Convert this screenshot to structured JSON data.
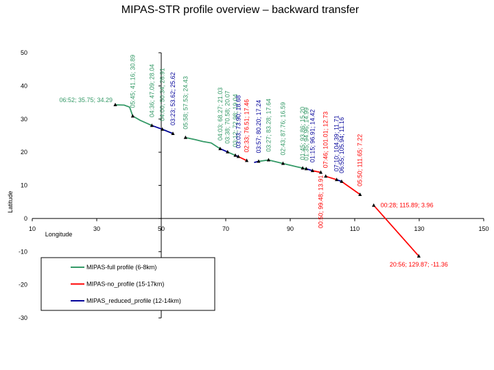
{
  "chart_data": {
    "type": "line",
    "title": "MIPAS-STR profile overview – backward transfer",
    "xlabel": "Longitude",
    "ylabel": "Latitude",
    "xlim": [
      10,
      150
    ],
    "ylim": [
      -30,
      50
    ],
    "xticks": [
      10,
      30,
      50,
      70,
      90,
      110,
      130,
      150
    ],
    "yticks": [
      50,
      40,
      30,
      20,
      10,
      0,
      -10,
      -20,
      -30
    ],
    "xtick_labels": [
      "10",
      "30",
      "50",
      "70",
      "90",
      "110",
      "130",
      "150"
    ],
    "ytick_labels": [
      "50",
      "40",
      "30",
      "20",
      "10",
      "0",
      "-10",
      "-20",
      "-30"
    ],
    "grid": false,
    "legend_position": "lower-left",
    "colors": {
      "full": "#339966",
      "no": "#ff0000",
      "reduced": "#000099",
      "marker": "#000000"
    },
    "series": [
      {
        "name": "MIPAS-full profile (6-8km)",
        "color": "#339966",
        "segments": [
          [
            [
              35.75,
              34.29
            ],
            [
              38.5,
              34.2
            ],
            [
              40.2,
              33.6
            ],
            [
              41.16,
              30.89
            ]
          ],
          [
            [
              41.16,
              30.89
            ],
            [
              43.5,
              29.6
            ],
            [
              47.09,
              28.04
            ]
          ],
          [
            [
              50.34,
              26.91
            ],
            [
              53.62,
              25.62
            ]
          ],
          [
            [
              57.53,
              24.43
            ],
            [
              60.5,
              23.8
            ],
            [
              63,
              23.2
            ],
            [
              65.5,
              22.8
            ],
            [
              68.27,
              21.03
            ]
          ],
          [
            [
              70.58,
              20.07
            ],
            [
              72.98,
              19.04
            ]
          ],
          [
            [
              80.2,
              17.24
            ],
            [
              83.28,
              17.64
            ],
            [
              87.76,
              16.59
            ]
          ],
          [
            [
              87.76,
              16.59
            ],
            [
              92,
              15.6
            ],
            [
              93.86,
              15.2
            ],
            [
              94.96,
              14.99
            ]
          ]
        ]
      },
      {
        "name": "MIPAS-no_profile (15-17km)",
        "color": "#ff0000",
        "segments": [
          [
            [
              73.9,
              18.68
            ],
            [
              76.51,
              17.46
            ]
          ],
          [
            [
              96.91,
              14.42
            ],
            [
              99.48,
              13.91
            ]
          ],
          [
            [
              101.01,
              12.73
            ],
            [
              104.39,
              11.71
            ]
          ],
          [
            [
              105.94,
              11.16
            ],
            [
              111.65,
              7.22
            ]
          ],
          [
            [
              115.89,
              3.96
            ],
            [
              129.87,
              -11.36
            ]
          ]
        ]
      },
      {
        "name": "MIPAS_reduced_profile (12-14km)",
        "color": "#000099",
        "segments": [
          [
            [
              47.09,
              28.04
            ],
            [
              50.34,
              26.91
            ]
          ],
          [
            [
              50.34,
              26.91
            ],
            [
              53.62,
              25.62
            ]
          ],
          [
            [
              68.27,
              21.03
            ],
            [
              70.58,
              20.07
            ]
          ],
          [
            [
              72.98,
              19.04
            ],
            [
              73.9,
              18.68
            ]
          ],
          [
            [
              80.2,
              17.24
            ],
            [
              78.8,
              16.9
            ]
          ],
          [
            [
              94.96,
              14.99
            ],
            [
              96.91,
              14.42
            ]
          ],
          [
            [
              104.39,
              11.71
            ],
            [
              105.94,
              11.16
            ]
          ]
        ]
      }
    ],
    "markers": [
      [
        35.75,
        34.29
      ],
      [
        41.16,
        30.89
      ],
      [
        47.09,
        28.04
      ],
      [
        50.34,
        26.91
      ],
      [
        53.62,
        25.62
      ],
      [
        57.53,
        24.43
      ],
      [
        68.27,
        21.03
      ],
      [
        70.58,
        20.07
      ],
      [
        72.98,
        19.04
      ],
      [
        73.9,
        18.68
      ],
      [
        76.51,
        17.46
      ],
      [
        80.2,
        17.24
      ],
      [
        83.28,
        17.64
      ],
      [
        87.76,
        16.59
      ],
      [
        93.86,
        15.2
      ],
      [
        94.96,
        14.99
      ],
      [
        96.91,
        14.42
      ],
      [
        99.48,
        13.91
      ],
      [
        101.01,
        12.73
      ],
      [
        104.39,
        11.71
      ],
      [
        105.94,
        11.16
      ],
      [
        111.65,
        7.22
      ],
      [
        115.89,
        3.96
      ],
      [
        129.87,
        -11.36
      ]
    ],
    "annotations": [
      {
        "text": "06:52; 35.75; 34.29",
        "x": 35.75,
        "y": 34.29,
        "color": "#339966",
        "orient": "h-left"
      },
      {
        "text": "05:45; 41.16; 30.89",
        "x": 41.16,
        "y": 30.89,
        "color": "#339966",
        "orient": "v"
      },
      {
        "text": "04:36; 47.09; 28.04",
        "x": 47.09,
        "y": 28.04,
        "color": "#339966",
        "orient": "v"
      },
      {
        "text": "04:00; 50.34; 26.91",
        "x": 50.34,
        "y": 26.91,
        "color": "#339966",
        "orient": "v"
      },
      {
        "text": "03:23; 53.62; 25.62",
        "x": 53.62,
        "y": 25.62,
        "color": "#000099",
        "orient": "v"
      },
      {
        "text": "05:58; 57.53; 24.43",
        "x": 57.53,
        "y": 24.43,
        "color": "#339966",
        "orient": "v"
      },
      {
        "text": "04:03; 68.27; 21.03",
        "x": 68.27,
        "y": 21.03,
        "color": "#339966",
        "orient": "v"
      },
      {
        "text": "03:38; 70.58; 20.07",
        "x": 70.58,
        "y": 20.07,
        "color": "#339966",
        "orient": "v"
      },
      {
        "text": "03:12; 72.98; 19.04",
        "x": 72.98,
        "y": 19.04,
        "color": "#339966",
        "orient": "v"
      },
      {
        "text": "03:03; 73.90; 18.68",
        "x": 73.9,
        "y": 18.68,
        "color": "#000099",
        "orient": "v"
      },
      {
        "text": "02:33; 76.51; 17.46",
        "x": 76.51,
        "y": 17.46,
        "color": "#ff0000",
        "orient": "v"
      },
      {
        "text": "03:57; 80.20; 17.24",
        "x": 80.2,
        "y": 17.24,
        "color": "#000099",
        "orient": "v"
      },
      {
        "text": "03:27; 83.28; 17.64",
        "x": 83.28,
        "y": 17.64,
        "color": "#339966",
        "orient": "v"
      },
      {
        "text": "02:43; 87.76; 16.59",
        "x": 87.76,
        "y": 16.59,
        "color": "#339966",
        "orient": "v"
      },
      {
        "text": "01:45; 93.86; 15.20",
        "x": 93.86,
        "y": 15.2,
        "color": "#339966",
        "orient": "v"
      },
      {
        "text": "01:35; 94.96; 14.99",
        "x": 94.96,
        "y": 14.99,
        "color": "#339966",
        "orient": "v"
      },
      {
        "text": "01:15; 96.91; 14.42",
        "x": 96.91,
        "y": 14.42,
        "color": "#000099",
        "orient": "v"
      },
      {
        "text": "00:50; 99.48; 13.91",
        "x": 99.48,
        "y": 13.91,
        "color": "#ff0000",
        "orient": "v-below"
      },
      {
        "text": "07:46; 101.01; 12.73",
        "x": 101.01,
        "y": 12.73,
        "color": "#ff0000",
        "orient": "v"
      },
      {
        "text": "07:10; 104.39; 11.71",
        "x": 104.39,
        "y": 11.71,
        "color": "#000099",
        "orient": "v"
      },
      {
        "text": "06:55; 105.94; 11.16",
        "x": 105.94,
        "y": 11.16,
        "color": "#000099",
        "orient": "v"
      },
      {
        "text": "05:50; 111.65; 7.22",
        "x": 111.65,
        "y": 7.22,
        "color": "#ff0000",
        "orient": "v"
      },
      {
        "text": "00:28; 115.89; 3.96",
        "x": 115.89,
        "y": 3.96,
        "color": "#ff0000",
        "orient": "h-right"
      },
      {
        "text": "20:56; 129.87; -11.36",
        "x": 129.87,
        "y": -11.36,
        "color": "#ff0000",
        "orient": "h-below"
      }
    ]
  }
}
